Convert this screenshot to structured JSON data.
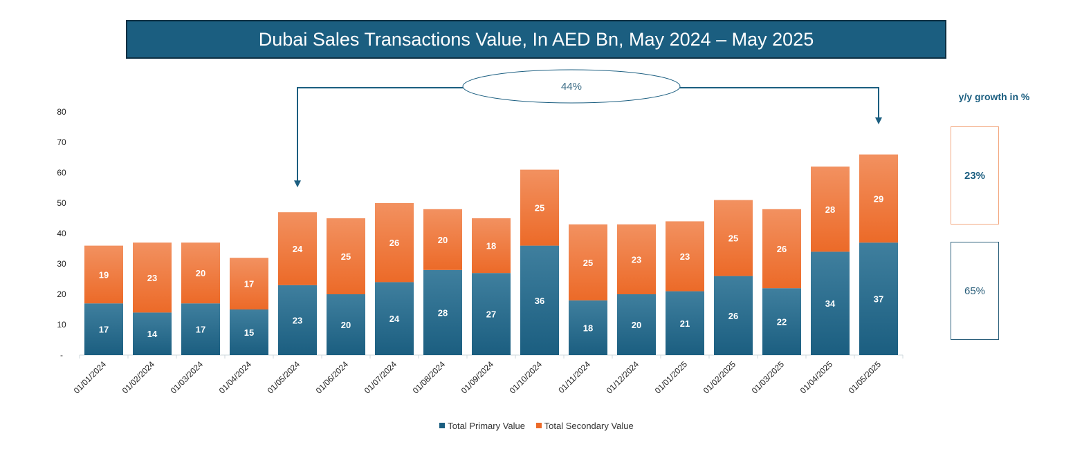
{
  "title": "Dubai Sales Transactions Value, In AED Bn, May 2024 – May 2025",
  "callout": "44%",
  "growth": {
    "label": "y/y growth in %",
    "secondary": "23%",
    "primary": "65%"
  },
  "colors": {
    "primary": "#1b5e80",
    "primary_light": "#3f7f9e",
    "secondary": "#ec6a28",
    "secondary_light": "#f29160",
    "title_bg": "#1b5e80"
  },
  "chart_data": {
    "type": "bar",
    "stacked": true,
    "categories": [
      "01/01/2024",
      "01/02/2024",
      "01/03/2024",
      "01/04/2024",
      "01/05/2024",
      "01/06/2024",
      "01/07/2024",
      "01/08/2024",
      "01/09/2024",
      "01/10/2024",
      "01/11/2024",
      "01/12/2024",
      "01/01/2025",
      "01/02/2025",
      "01/03/2025",
      "01/04/2025",
      "01/05/2025"
    ],
    "series": [
      {
        "name": "Total Primary Value",
        "values": [
          17,
          14,
          17,
          15,
          23,
          20,
          24,
          28,
          27,
          36,
          18,
          20,
          21,
          26,
          22,
          34,
          37
        ]
      },
      {
        "name": "Total Secondary Value",
        "values": [
          19,
          23,
          20,
          17,
          24,
          25,
          26,
          20,
          18,
          25,
          25,
          23,
          23,
          25,
          26,
          28,
          29
        ]
      }
    ],
    "yticks": [
      "-",
      "10",
      "20",
      "30",
      "40",
      "50",
      "60",
      "70",
      "80"
    ],
    "ylim": [
      0,
      80
    ],
    "grid": false,
    "legend": "bottom"
  }
}
